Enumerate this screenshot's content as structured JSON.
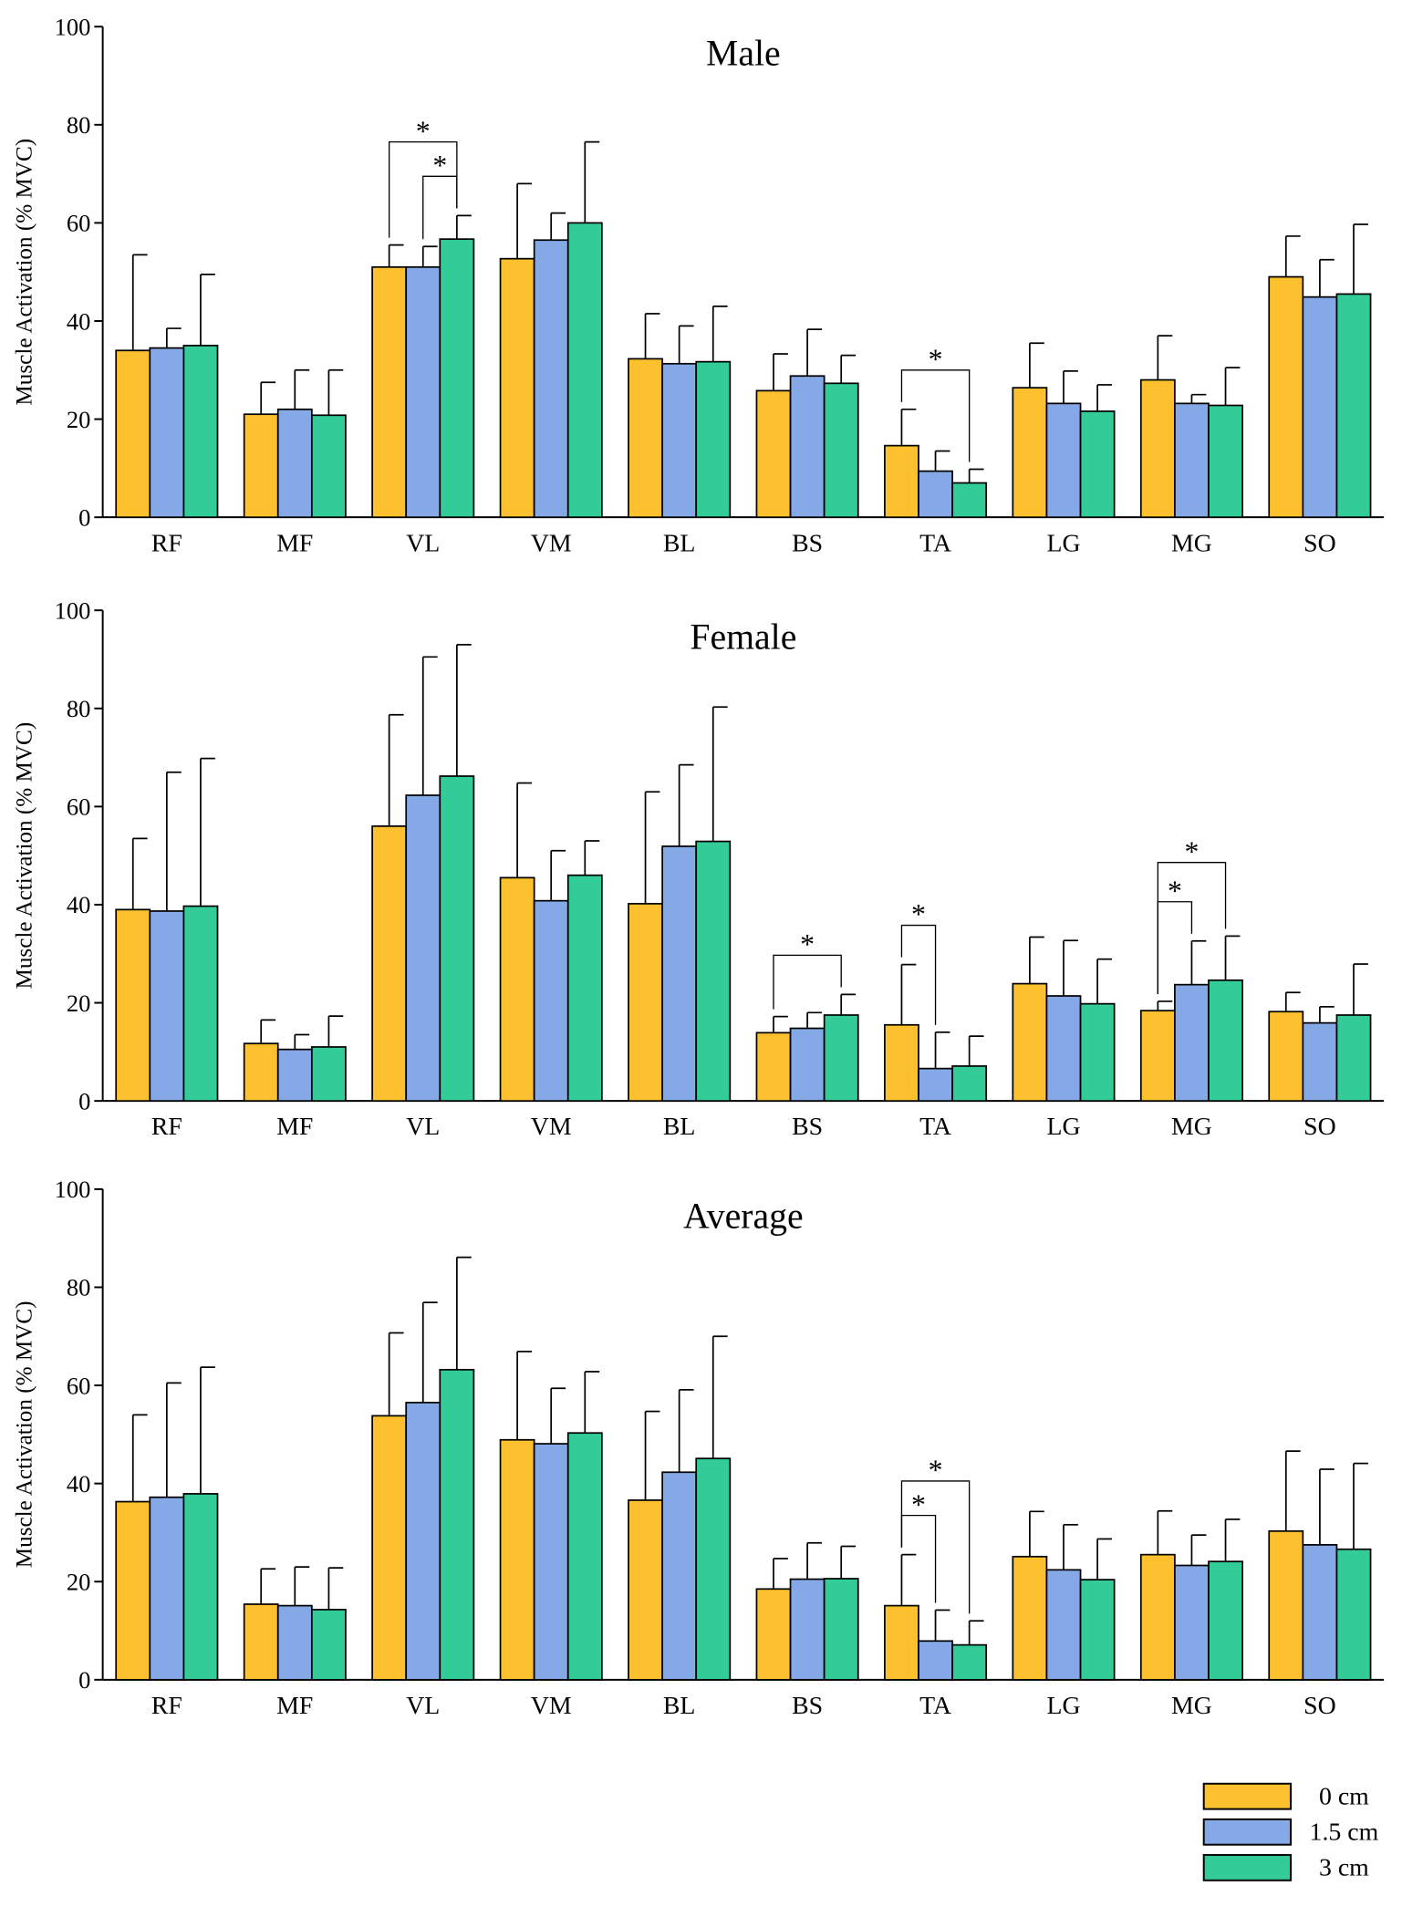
{
  "legend": {
    "series": [
      {
        "name": "0 cm",
        "color": "#fdc02f"
      },
      {
        "name": "1.5 cm",
        "color": "#84a9e6"
      },
      {
        "name": "3 cm",
        "color": "#33cc99"
      }
    ]
  },
  "chart_data": [
    {
      "type": "bar",
      "title": "Male",
      "y_label": "Muscle Activation (% MVC)",
      "categories": [
        "RF",
        "MF",
        "VL",
        "VM",
        "BL",
        "BS",
        "TA",
        "LG",
        "MG",
        "SO"
      ],
      "series": [
        {
          "values": [
            34,
            21,
            51,
            52.7,
            32.3,
            25.8,
            14.6,
            26.4,
            28,
            49
          ],
          "errors": [
            19.5,
            6.5,
            4.5,
            15.3,
            9.2,
            7.5,
            7.4,
            9.1,
            9,
            8.3
          ]
        },
        {
          "values": [
            34.5,
            22,
            51,
            56.5,
            31.3,
            28.8,
            9.4,
            23.2,
            23.2,
            44.9
          ],
          "errors": [
            4,
            8,
            4.2,
            5.5,
            7.7,
            9.5,
            4.1,
            6.6,
            1.8,
            7.6
          ]
        },
        {
          "values": [
            35,
            20.8,
            56.7,
            60,
            31.7,
            27.3,
            7,
            21.6,
            22.8,
            45.5
          ],
          "errors": [
            14.5,
            9.2,
            4.8,
            16.5,
            11.3,
            5.7,
            2.8,
            5.4,
            7.7,
            14.2
          ]
        }
      ],
      "ylim": [
        0,
        100
      ],
      "yticks": [
        0,
        20,
        40,
        60,
        80,
        100
      ],
      "annotations": [
        {
          "category": "VL",
          "from": "1.5 cm",
          "to": "3 cm",
          "label": "*"
        },
        {
          "category": "VL",
          "from": "0 cm",
          "to": "3 cm",
          "label": "*"
        },
        {
          "category": "TA",
          "from": "0 cm",
          "to": "3 cm",
          "label": "*"
        }
      ]
    },
    {
      "type": "bar",
      "title": "Female",
      "y_label": "Muscle Activation (% MVC)",
      "categories": [
        "RF",
        "MF",
        "VL",
        "VM",
        "BL",
        "BS",
        "TA",
        "LG",
        "MG",
        "SO"
      ],
      "series": [
        {
          "values": [
            39,
            11.7,
            56,
            45.5,
            40.2,
            13.9,
            15.5,
            23.9,
            18.4,
            18.2
          ],
          "errors": [
            14.5,
            4.8,
            22.7,
            19.3,
            22.8,
            3.3,
            12.3,
            9.5,
            1.9,
            3.9
          ]
        },
        {
          "values": [
            38.7,
            10.5,
            62.3,
            40.8,
            51.9,
            14.8,
            6.6,
            21.4,
            23.7,
            15.9
          ],
          "errors": [
            28.3,
            3,
            28.2,
            10.2,
            16.6,
            3.2,
            7.4,
            11.3,
            8.9,
            3.3
          ]
        },
        {
          "values": [
            39.7,
            11,
            66.2,
            46,
            52.9,
            17.5,
            7.1,
            19.8,
            24.6,
            17.5
          ],
          "errors": [
            30.1,
            6.3,
            26.8,
            7,
            27.4,
            4.2,
            6.1,
            9.1,
            9,
            10.4
          ]
        }
      ],
      "ylim": [
        0,
        100
      ],
      "yticks": [
        0,
        20,
        40,
        60,
        80,
        100
      ],
      "annotations": [
        {
          "category": "BS",
          "from": "0 cm",
          "to": "3 cm",
          "label": "*"
        },
        {
          "category": "TA",
          "from": "0 cm",
          "to": "1.5 cm",
          "label": "*"
        },
        {
          "category": "MG",
          "from": "0 cm",
          "to": "1.5 cm",
          "label": "*"
        },
        {
          "category": "MG",
          "from": "0 cm",
          "to": "3 cm",
          "label": "*"
        }
      ]
    },
    {
      "type": "bar",
      "title": "Average",
      "y_label": "Muscle Activation (% MVC)",
      "categories": [
        "RF",
        "MF",
        "VL",
        "VM",
        "BL",
        "BS",
        "TA",
        "LG",
        "MG",
        "SO"
      ],
      "series": [
        {
          "values": [
            36.3,
            15.4,
            53.8,
            48.9,
            36.6,
            18.5,
            15.1,
            25.1,
            25.5,
            30.3
          ],
          "errors": [
            17.7,
            7.2,
            16.9,
            18,
            18.1,
            6.2,
            10.4,
            9.2,
            8.9,
            16.3
          ]
        },
        {
          "values": [
            37.2,
            15.1,
            56.5,
            48.1,
            42.3,
            20.5,
            7.9,
            22.4,
            23.3,
            27.5
          ],
          "errors": [
            23.3,
            7.9,
            20.4,
            11.3,
            16.8,
            7.4,
            6.3,
            9.2,
            6.2,
            15.4
          ]
        },
        {
          "values": [
            37.9,
            14.3,
            63.2,
            50.3,
            45.1,
            20.6,
            7.1,
            20.4,
            24.1,
            26.6
          ],
          "errors": [
            25.8,
            8.5,
            22.9,
            12.5,
            24.9,
            6.6,
            4.9,
            8.3,
            8.6,
            17.5
          ]
        }
      ],
      "ylim": [
        0,
        100
      ],
      "yticks": [
        0,
        20,
        40,
        60,
        80,
        100
      ],
      "annotations": [
        {
          "category": "TA",
          "from": "0 cm",
          "to": "1.5 cm",
          "label": "*"
        },
        {
          "category": "TA",
          "from": "0 cm",
          "to": "3 cm",
          "label": "*"
        }
      ]
    }
  ]
}
